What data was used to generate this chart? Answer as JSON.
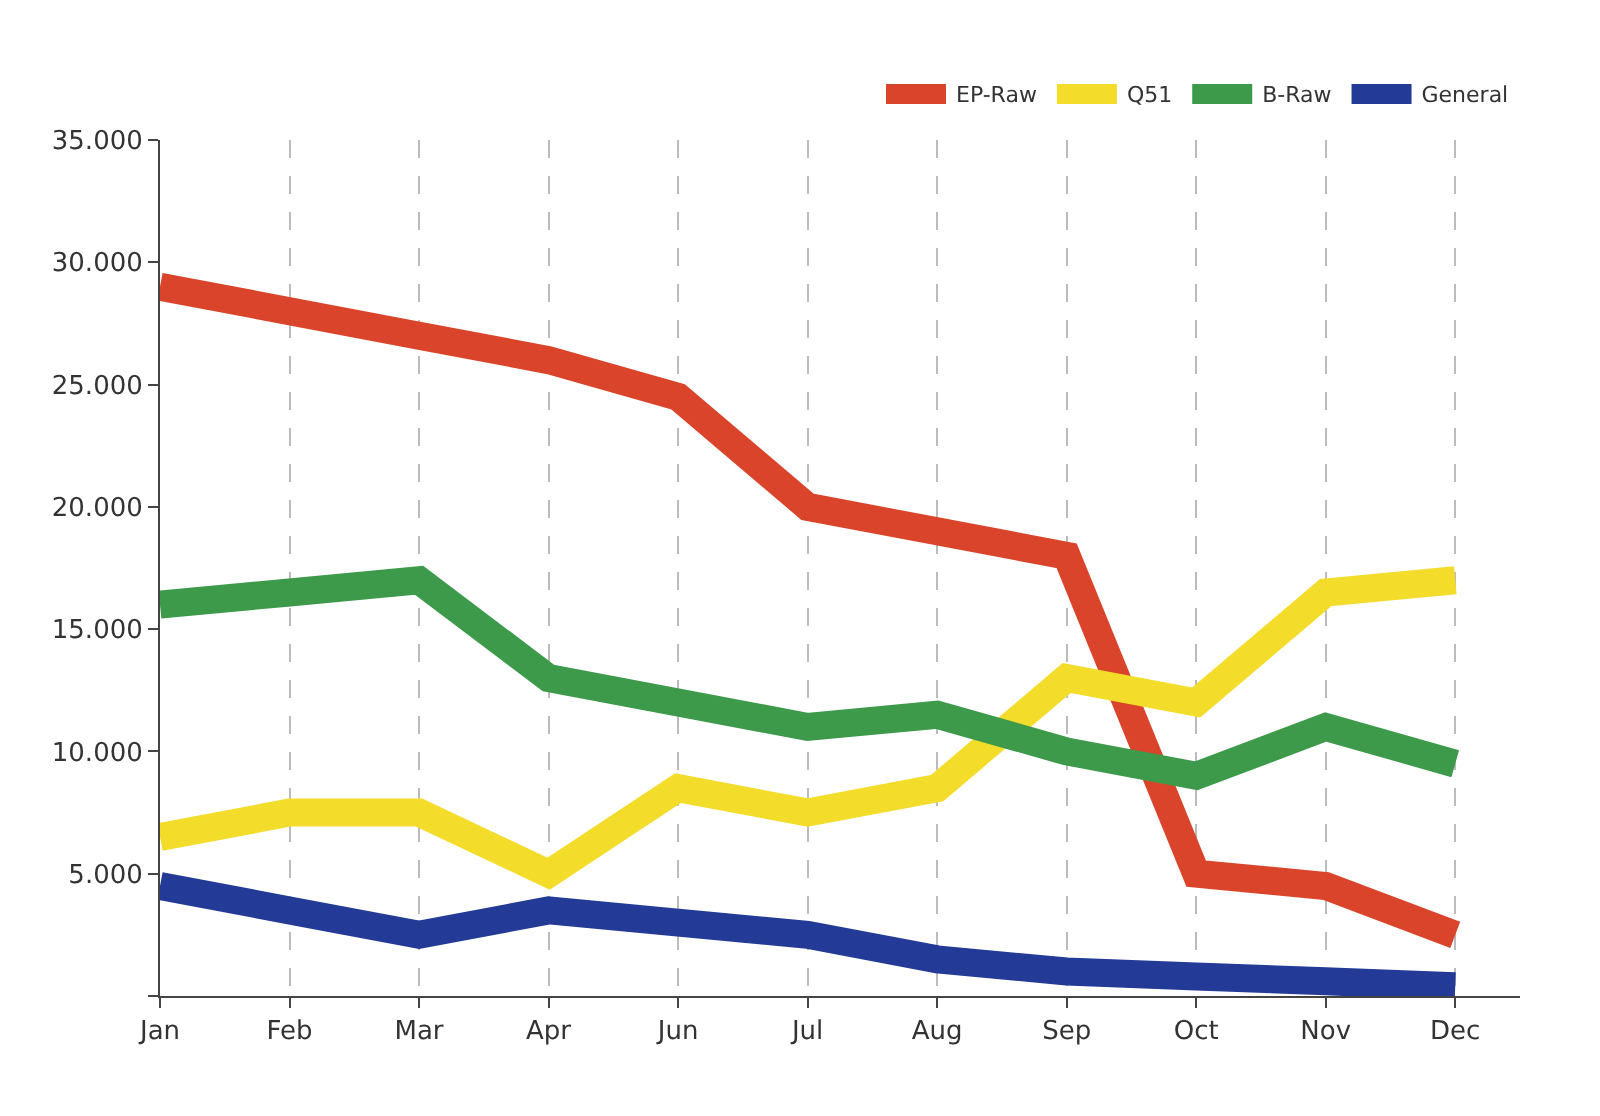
{
  "chart_data": {
    "type": "line",
    "categories": [
      "Jan",
      "Feb",
      "Mar",
      "Apr",
      "Jun",
      "Jul",
      "Aug",
      "Sep",
      "Oct",
      "Nov",
      "Dec"
    ],
    "series": [
      {
        "name": "EP-Raw",
        "color": "#d9442a",
        "values": [
          29000,
          28000,
          27000,
          26000,
          24500,
          20000,
          19000,
          18000,
          5000,
          4500,
          2500
        ]
      },
      {
        "name": "Q51",
        "color": "#f3dc2a",
        "values": [
          6500,
          7500,
          7500,
          5000,
          8500,
          7500,
          8500,
          13000,
          12000,
          16500,
          17000
        ]
      },
      {
        "name": "B-Raw",
        "color": "#3c9a4a",
        "values": [
          16000,
          16500,
          17000,
          13000,
          12000,
          11000,
          11500,
          10000,
          9000,
          11000,
          9500
        ]
      },
      {
        "name": "General",
        "color": "#233a96",
        "values": [
          4500,
          3500,
          2500,
          3500,
          3000,
          2500,
          1500,
          1000,
          800,
          600,
          400
        ]
      }
    ],
    "ylim": [
      0,
      35000
    ],
    "yticks": [
      {
        "value": 0,
        "label": null
      },
      {
        "value": 5000,
        "label": "5.000"
      },
      {
        "value": 10000,
        "label": "10.000"
      },
      {
        "value": 15000,
        "label": "15.000"
      },
      {
        "value": 20000,
        "label": "20.000"
      },
      {
        "value": 25000,
        "label": "25.000"
      },
      {
        "value": 30000,
        "label": "30.000"
      },
      {
        "value": 35000,
        "label": "35.000"
      }
    ],
    "grid": "x",
    "legend": "top right",
    "marker": "none",
    "line_style": "solid"
  }
}
